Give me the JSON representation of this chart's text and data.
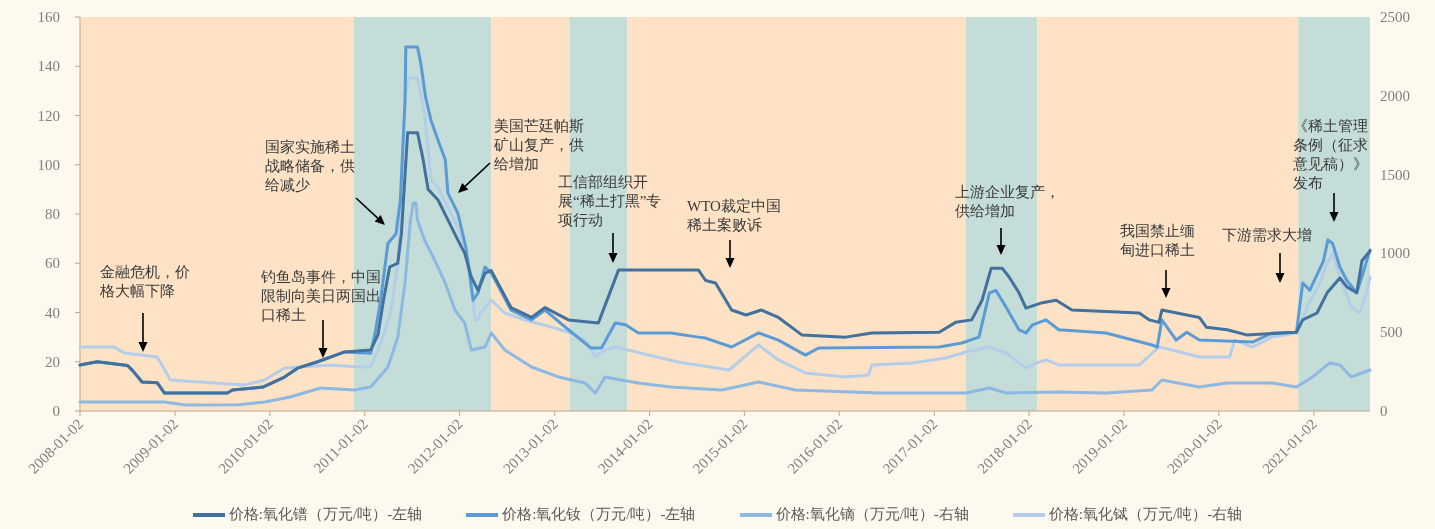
{
  "chart_data": {
    "type": "line",
    "xlim": [
      "2008-01-02",
      "2021-08-06"
    ],
    "xticks": [
      "2008-01-02",
      "2009-01-02",
      "2010-01-02",
      "2011-01-02",
      "2012-01-02",
      "2013-01-02",
      "2014-01-02",
      "2015-01-02",
      "2016-01-02",
      "2017-01-02",
      "2018-01-02",
      "2019-01-02",
      "2020-01-02",
      "2021-01-02"
    ],
    "ylim": [
      0,
      160
    ],
    "yticks": [
      0,
      20,
      40,
      60,
      80,
      100,
      120,
      140,
      160
    ],
    "y2lim": [
      0,
      2500
    ],
    "y2ticks": [
      0,
      500,
      1000,
      1500,
      2000,
      2500
    ],
    "legend": "bottom",
    "series": [
      {
        "name": "价格:氧化镨（万元/吨）-左轴",
        "color": "#41719c",
        "x": [
          "2008-01-02",
          "2008-03-08",
          "2008-07-03",
          "2008-07-21",
          "2008-08-28",
          "2008-10-25",
          "2008-11-22",
          "2009-07-22",
          "2009-08-11",
          "2009-12-06",
          "2010-02-27",
          "2010-04-18",
          "2010-07-05",
          "2010-10-17",
          "2011-01-25",
          "2011-02-22",
          "2011-03-15",
          "2011-04-08",
          "2011-05-09",
          "2011-05-23",
          "2011-06-16",
          "2011-07-24",
          "2011-08-13",
          "2011-09-03",
          "2011-10-11",
          "2011-11-18",
          "2011-12-26",
          "2012-01-22",
          "2012-02-16",
          "2012-03-13",
          "2012-04-09",
          "2012-05-03",
          "2012-07-18",
          "2012-10-05",
          "2012-11-26",
          "2013-02-24",
          "2013-06-19",
          "2013-09-05",
          "2014-07-09",
          "2014-08-06",
          "2014-09-13",
          "2014-11-14",
          "2015-01-08",
          "2015-03-09",
          "2015-05-13",
          "2015-08-11",
          "2016-01-27",
          "2016-05-07",
          "2017-01-21",
          "2017-03-25",
          "2017-05-26",
          "2017-07-05",
          "2017-08-09",
          "2017-09-20",
          "2017-10-17",
          "2017-11-24",
          "2017-12-21",
          "2018-02-22",
          "2018-04-16",
          "2018-06-16",
          "2019-03-02",
          "2019-04-10",
          "2019-05-17",
          "2019-05-28",
          "2019-10-19",
          "2019-11-16",
          "2020-02-03",
          "2020-04-18",
          "2020-10-27",
          "2020-11-20",
          "2021-01-14",
          "2021-02-22",
          "2021-04-12",
          "2021-05-09",
          "2021-06-16",
          "2021-07-06",
          "2021-08-06"
        ],
        "values": [
          18.7,
          20,
          18.5,
          16.6,
          11.8,
          11.5,
          7.3,
          7.3,
          8.5,
          9.7,
          13.8,
          17.4,
          20,
          24,
          24.8,
          31,
          45,
          58.5,
          60,
          72,
          113,
          113,
          103,
          90,
          85.7,
          77.6,
          69.5,
          64,
          54.4,
          49,
          56,
          57,
          42,
          38,
          42,
          37,
          35.7,
          57.3,
          57.3,
          53,
          52,
          41,
          39,
          41,
          38,
          30.9,
          30,
          31.7,
          32,
          36,
          37,
          45,
          58,
          58,
          54.4,
          48,
          41.8,
          44,
          45,
          41,
          39.8,
          37,
          36,
          41,
          38,
          34,
          33,
          30.9,
          32,
          37,
          39.8,
          48,
          54,
          50.4,
          48,
          61,
          65
        ]
      },
      {
        "name": "价格:氧化钕（万元/吨）-左轴",
        "color": "#5b9bd5",
        "x": [
          "2008-01-02",
          "2008-03-08",
          "2008-07-03",
          "2008-07-21",
          "2008-08-28",
          "2008-10-25",
          "2008-11-22",
          "2009-07-22",
          "2009-08-11",
          "2009-12-06",
          "2010-02-27",
          "2010-04-18",
          "2010-07-05",
          "2010-10-17",
          "2011-01-25",
          "2011-02-11",
          "2011-03-04",
          "2011-04-01",
          "2011-05-02",
          "2011-05-19",
          "2011-06-06",
          "2011-06-09",
          "2011-07-24",
          "2011-08-06",
          "2011-08-24",
          "2011-09-14",
          "2011-10-11",
          "2011-11-08",
          "2011-11-18",
          "2011-12-26",
          "2012-01-26",
          "2012-02-23",
          "2012-03-13",
          "2012-04-09",
          "2012-05-03",
          "2012-07-18",
          "2012-10-05",
          "2012-11-26",
          "2013-02-24",
          "2013-05-21",
          "2013-07-01",
          "2013-08-23",
          "2013-10-02",
          "2013-11-20",
          "2014-03-25",
          "2014-07-09",
          "2014-08-06",
          "2014-11-14",
          "2015-02-26",
          "2015-05-13",
          "2015-08-25",
          "2015-10-15",
          "2017-01-21",
          "2017-04-18",
          "2017-06-23",
          "2017-08-02",
          "2017-08-27",
          "2017-10-06",
          "2017-11-24",
          "2017-12-21",
          "2018-01-15",
          "2018-03-08",
          "2018-04-26",
          "2018-10-25",
          "2019-04-20",
          "2019-05-10",
          "2019-05-28",
          "2019-07-22",
          "2019-09-01",
          "2019-10-19",
          "2020-05-11",
          "2020-07-26",
          "2020-10-27",
          "2020-11-20",
          "2020-12-17",
          "2021-02-08",
          "2021-02-25",
          "2021-03-15",
          "2021-04-12",
          "2021-05-09",
          "2021-06-16",
          "2021-07-10",
          "2021-08-06"
        ],
        "values": [
          18.7,
          20,
          18.5,
          16.6,
          11.8,
          11.5,
          7.3,
          7.3,
          8.5,
          9.7,
          13.8,
          17.4,
          20,
          24,
          23.5,
          31.7,
          45,
          68,
          72,
          85.7,
          126,
          147.8,
          147.8,
          141,
          127.5,
          118,
          110,
          102,
          88.5,
          80.4,
          66.6,
          45,
          48,
          58.5,
          56,
          41,
          37,
          41,
          33,
          25.6,
          25.6,
          35.7,
          35,
          31.7,
          31.7,
          30,
          29.6,
          26,
          31.7,
          28.8,
          22.7,
          25.6,
          26,
          27.6,
          30,
          48,
          49,
          42,
          33,
          31.7,
          35,
          37,
          33,
          31.7,
          26.8,
          26,
          37,
          28.8,
          32,
          28.8,
          28,
          31.7,
          32,
          52,
          49,
          61,
          69.5,
          68,
          58.5,
          53,
          48,
          56,
          65.4
        ]
      },
      {
        "name": "价格:氧化镝（万元/吨）-右轴",
        "color": "#8db8e2",
        "axis": "y2",
        "x": [
          "2008-01-02",
          "2008-11-22",
          "2009-02-09",
          "2009-09-01",
          "2009-12-13",
          "2010-03-21",
          "2010-07-16",
          "2010-11-24",
          "2011-01-25",
          "2011-04-01",
          "2011-05-09",
          "2011-06-06",
          "2011-06-27",
          "2011-07-08",
          "2011-07-18",
          "2011-07-24",
          "2011-08-20",
          "2011-09-28",
          "2011-11-08",
          "2011-12-15",
          "2012-01-22",
          "2012-02-16",
          "2012-04-09",
          "2012-05-03",
          "2012-06-24",
          "2012-10-05",
          "2013-01-17",
          "2013-04-28",
          "2013-06-08",
          "2013-07-15",
          "2013-09-16",
          "2013-11-20",
          "2014-03-25",
          "2014-10-07",
          "2015-02-26",
          "2015-07-17",
          "2016-06-04",
          "2017-05-04",
          "2017-08-02",
          "2017-10-06",
          "2018-04-26",
          "2018-10-25",
          "2019-04-20",
          "2019-05-28",
          "2019-10-19",
          "2020-02-03",
          "2020-07-26",
          "2020-10-27",
          "2020-12-28",
          "2021-03-04",
          "2021-04-12",
          "2021-05-26",
          "2021-08-06"
        ],
        "values": [
          57,
          57,
          38,
          40,
          57,
          89,
          146,
          133,
          152,
          279,
          470,
          812,
          1212,
          1320,
          1320,
          1212,
          1085,
          958,
          812,
          641,
          558,
          387,
          406,
          495,
          387,
          279,
          216,
          178,
          114,
          216,
          197,
          178,
          152,
          133,
          184,
          133,
          114,
          114,
          146,
          114,
          121,
          114,
          133,
          197,
          152,
          178,
          178,
          152,
          216,
          305,
          292,
          216,
          260
        ]
      },
      {
        "name": "价格:氧化铽（万元/吨）-右轴",
        "color": "#b4cde9",
        "axis": "y2",
        "x": [
          "2008-01-02",
          "2008-05-13",
          "2008-06-20",
          "2008-10-25",
          "2008-12-15",
          "2009-09-26",
          "2009-12-13",
          "2010-02-27",
          "2010-08-23",
          "2010-11-24",
          "2011-01-25",
          "2011-03-04",
          "2011-04-12",
          "2011-05-09",
          "2011-06-06",
          "2011-06-16",
          "2011-07-24",
          "2011-08-20",
          "2011-09-14",
          "2011-10-11",
          "2011-11-18",
          "2011-12-26",
          "2012-02-05",
          "2012-03-02",
          "2012-03-12",
          "2012-03-23",
          "2012-05-03",
          "2012-06-24",
          "2012-09-11",
          "2012-12-20",
          "2013-03-06",
          "2013-04-28",
          "2013-06-08",
          "2013-07-15",
          "2013-08-23",
          "2014-04-22",
          "2014-11-04",
          "2015-02-26",
          "2015-05-13",
          "2015-08-25",
          "2016-01-27",
          "2016-04-24",
          "2016-05-07",
          "2016-10-09",
          "2017-02-17",
          "2017-05-04",
          "2017-08-02",
          "2017-10-06",
          "2017-12-21",
          "2018-02-01",
          "2018-03-08",
          "2018-04-26",
          "2019-03-02",
          "2019-05-17",
          "2019-07-07",
          "2019-10-19",
          "2020-02-13",
          "2020-03-03",
          "2020-05-11",
          "2020-07-26",
          "2020-10-27",
          "2020-12-07",
          "2021-01-25",
          "2021-02-22",
          "2021-03-15",
          "2021-04-12",
          "2021-05-26",
          "2021-06-27",
          "2021-07-24",
          "2021-08-06"
        ],
        "values": [
          406,
          406,
          368,
          343,
          197,
          165,
          197,
          273,
          292,
          280,
          280,
          431,
          622,
          939,
          1973,
          2113,
          2113,
          1891,
          1466,
          1421,
          1294,
          1167,
          958,
          577,
          577,
          622,
          704,
          622,
          577,
          533,
          495,
          450,
          343,
          387,
          406,
          311,
          260,
          419,
          324,
          241,
          216,
          228,
          292,
          305,
          336,
          374,
          406,
          368,
          273,
          305,
          324,
          292,
          292,
          406,
          387,
          343,
          343,
          450,
          406,
          470,
          495,
          660,
          812,
          939,
          1003,
          850,
          660,
          622,
          749,
          850
        ]
      }
    ],
    "bands": [
      {
        "axis": "x",
        "from": "2008-01-02",
        "to": "2010-11-21",
        "color": "#fde2c6"
      },
      {
        "axis": "x",
        "from": "2010-11-21",
        "to": "2012-05-03",
        "color": "#c4ddd8"
      },
      {
        "axis": "x",
        "from": "2012-05-03",
        "to": "2013-02-28",
        "color": "#fde2c6"
      },
      {
        "axis": "x",
        "from": "2013-02-28",
        "to": "2013-10-09",
        "color": "#c4ddd8"
      },
      {
        "axis": "x",
        "from": "2013-10-09",
        "to": "2017-05-04",
        "color": "#fde2c6"
      },
      {
        "axis": "x",
        "from": "2017-05-04",
        "to": "2018-02-01",
        "color": "#c4ddd8"
      },
      {
        "axis": "x",
        "from": "2018-02-01",
        "to": "2020-11-03",
        "color": "#fde2c6"
      },
      {
        "axis": "x",
        "from": "2020-11-03",
        "to": "2021-08-06",
        "color": "#c4ddd8"
      }
    ],
    "annotations": [
      "金融危机，价格大幅下降",
      "钓鱼岛事件，中国限制向美日两国出口稀土",
      "国家实施稀土战略储备，供给减少",
      "美国芒廷帕斯矿山复产，供给增加",
      "工信部组织开展“稀土打黑”专项行动",
      "WTO裁定中国稀土案败诉",
      "上游企业复产，供给增加",
      "我国禁止缅甸进口稀土",
      "下游需求大增",
      "《稀土管理条例（征求意见稿）》发布"
    ]
  }
}
